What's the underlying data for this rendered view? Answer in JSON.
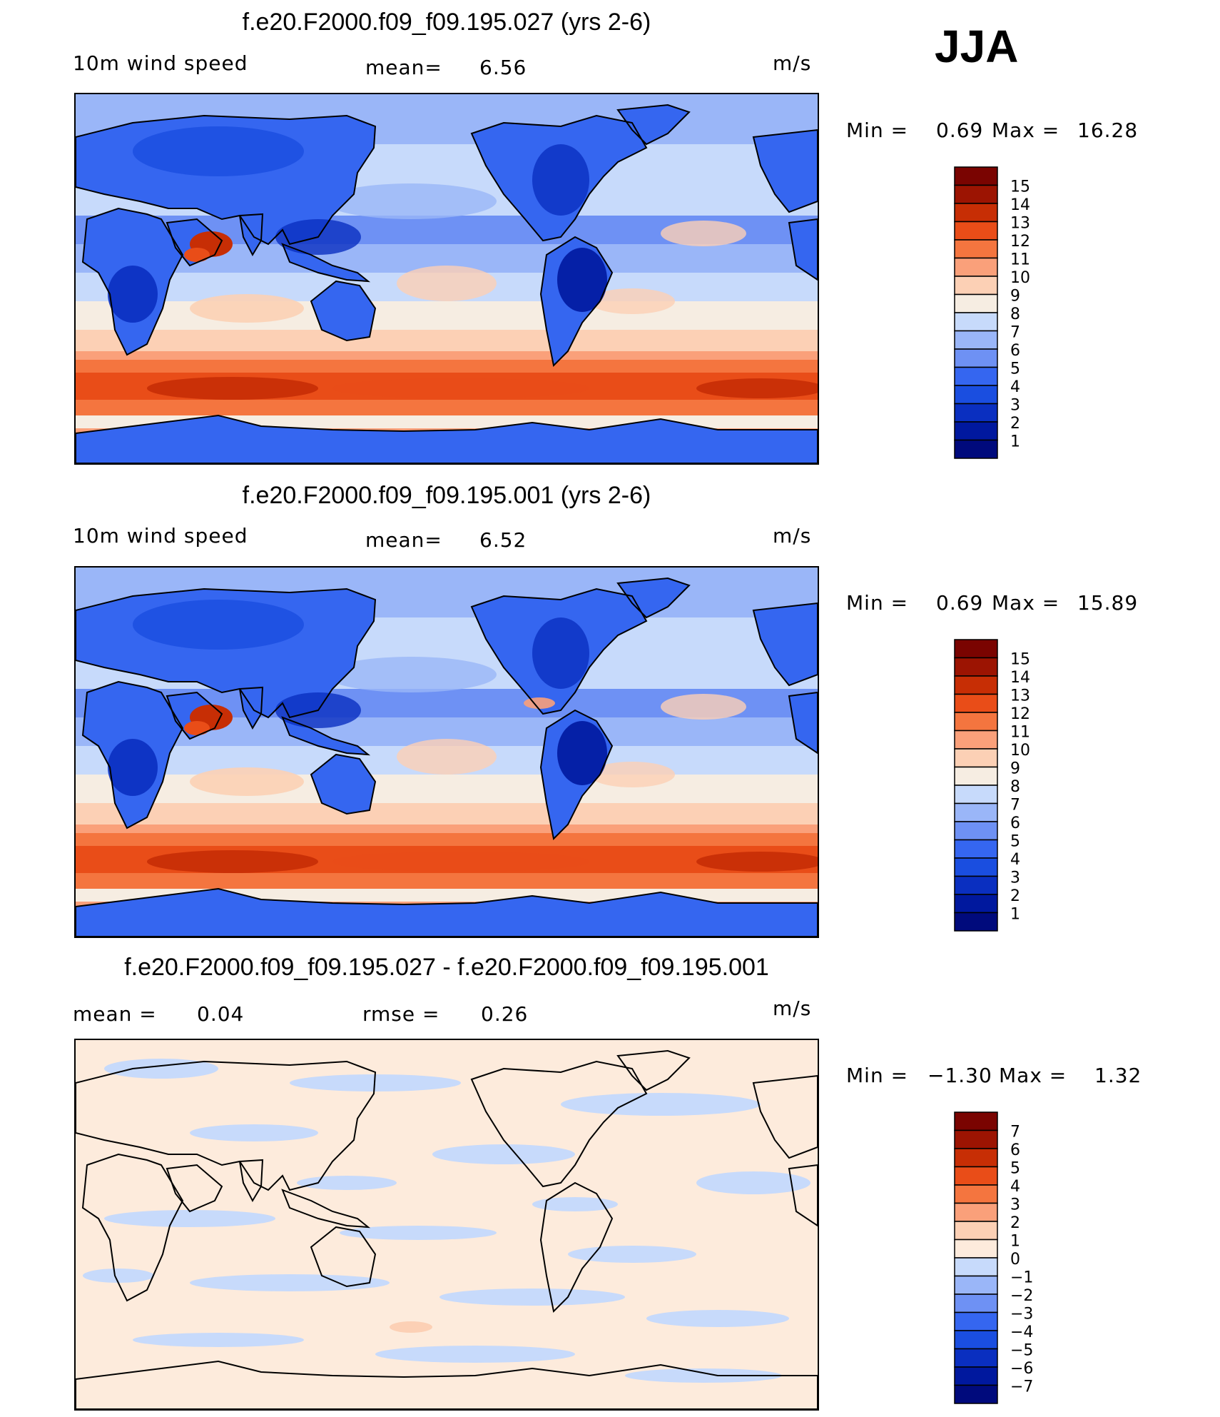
{
  "season": "JJA",
  "panels": [
    {
      "title": "f.e20.F2000.f09_f09.195.027 (yrs 2-6)",
      "left": "10m wind speed",
      "center_label": "mean=",
      "center_value": "6.56",
      "units": "m/s",
      "stats": {
        "min_label": "Min =",
        "min": "0.69",
        "max_label": "Max =",
        "max": "16.28"
      },
      "colorbar": {
        "colors": [
          "#000a7c",
          "#00189e",
          "#0a2fc0",
          "#1a4ee0",
          "#3566f0",
          "#6e91f4",
          "#9ab6f8",
          "#c7dafb",
          "#f6ede2",
          "#fcd0b5",
          "#faa07a",
          "#f4753f",
          "#e94d18",
          "#c72e05",
          "#9c1402",
          "#7a0401"
        ],
        "ticks": [
          "1",
          "2",
          "3",
          "4",
          "5",
          "6",
          "7",
          "8",
          "9",
          "10",
          "11",
          "12",
          "13",
          "14",
          "15"
        ]
      },
      "map_style": "wind_a"
    },
    {
      "title": "f.e20.F2000.f09_f09.195.001 (yrs 2-6)",
      "left": "10m wind speed",
      "center_label": "mean=",
      "center_value": "6.52",
      "units": "m/s",
      "stats": {
        "min_label": "Min =",
        "min": "0.69",
        "max_label": "Max =",
        "max": "15.89"
      },
      "colorbar": {
        "colors": [
          "#000a7c",
          "#00189e",
          "#0a2fc0",
          "#1a4ee0",
          "#3566f0",
          "#6e91f4",
          "#9ab6f8",
          "#c7dafb",
          "#f6ede2",
          "#fcd0b5",
          "#faa07a",
          "#f4753f",
          "#e94d18",
          "#c72e05",
          "#9c1402",
          "#7a0401"
        ],
        "ticks": [
          "1",
          "2",
          "3",
          "4",
          "5",
          "6",
          "7",
          "8",
          "9",
          "10",
          "11",
          "12",
          "13",
          "14",
          "15"
        ]
      },
      "map_style": "wind_b"
    },
    {
      "title": "f.e20.F2000.f09_f09.195.027 - f.e20.F2000.f09_f09.195.001",
      "left": "mean =",
      "left_value": "0.04",
      "center_label": "rmse =",
      "center_value": "0.26",
      "units": "m/s",
      "stats": {
        "min_label": "Min =",
        "min": "−1.30",
        "max_label": "Max =",
        "max": "1.32"
      },
      "colorbar": {
        "colors": [
          "#000a7c",
          "#00189e",
          "#0a2fc0",
          "#1a4ee0",
          "#3566f0",
          "#6e91f4",
          "#9ab6f8",
          "#c7dafb",
          "#fdebdc",
          "#fcd0b5",
          "#faa07a",
          "#f4753f",
          "#e94d18",
          "#c72e05",
          "#9c1402",
          "#7a0401"
        ],
        "ticks": [
          "−7",
          "−6",
          "−5",
          "−4",
          "−3",
          "−2",
          "−1",
          "0",
          "1",
          "2",
          "3",
          "4",
          "5",
          "6",
          "7"
        ]
      },
      "map_style": "diff"
    }
  ]
}
